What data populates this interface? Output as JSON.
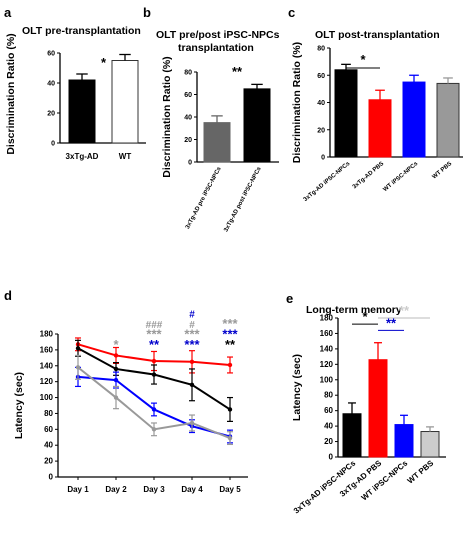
{
  "panels": {
    "a": {
      "label": "a",
      "title": "OLT pre-transplantation"
    },
    "b": {
      "label": "b",
      "title_line1": "OLT pre/post iPSC-NPCs",
      "title_line2": "transplantation"
    },
    "c": {
      "label": "c",
      "title": "OLT post-transplantation"
    },
    "d": {
      "label": "d"
    },
    "e": {
      "label": "e",
      "title": "Long-term memory"
    }
  },
  "chart_data": [
    {
      "id": "a",
      "type": "bar",
      "categories": [
        "3xTg-AD",
        "WT"
      ],
      "values": [
        42,
        55
      ],
      "errors": [
        4,
        4
      ],
      "ylabel": "Discrimination Ratio (%)",
      "ylim": [
        0,
        60
      ],
      "yticks": [
        0,
        20,
        40,
        60
      ],
      "colors": [
        "#000000",
        "#ffffff"
      ],
      "significance": [
        "*"
      ]
    },
    {
      "id": "b",
      "type": "bar",
      "categories": [
        "3xTg-AD pre iPSC-NPCs",
        "3xTg-AD post iPSC-NPCs"
      ],
      "values": [
        35,
        65
      ],
      "errors": [
        6,
        4
      ],
      "ylabel": "Discrimination Ratio (%)",
      "ylim": [
        0,
        80
      ],
      "yticks": [
        0,
        20,
        40,
        60,
        80
      ],
      "colors": [
        "#666666",
        "#000000"
      ],
      "significance": [
        "**"
      ]
    },
    {
      "id": "c",
      "type": "bar",
      "categories": [
        "3xTg-AD iPSC-NPCs",
        "3xTg-AD PBS",
        "WT iPSC-NPCs",
        "WT PBS"
      ],
      "values": [
        64,
        42,
        55,
        54
      ],
      "errors": [
        4,
        7,
        5,
        4
      ],
      "ylabel": "Discrimination Ratio (%)",
      "ylim": [
        0,
        80
      ],
      "yticks": [
        0,
        20,
        40,
        60,
        80
      ],
      "colors": [
        "#000000",
        "#ff0000",
        "#0000ff",
        "#999999"
      ],
      "significance": [
        "*"
      ]
    },
    {
      "id": "d",
      "type": "line",
      "x": [
        "Day 1",
        "Day 2",
        "Day 3",
        "Day 4",
        "Day 5"
      ],
      "ylabel": "Latency (sec)",
      "ylim": [
        0,
        180
      ],
      "yticks": [
        0,
        20,
        40,
        60,
        80,
        100,
        120,
        140,
        160,
        180
      ],
      "series": [
        {
          "color": "#ff0000",
          "values": [
            167,
            153,
            146,
            145,
            141
          ],
          "errors": [
            8,
            10,
            12,
            14,
            10
          ]
        },
        {
          "color": "#000000",
          "values": [
            162,
            136,
            129,
            116,
            85
          ],
          "errors": [
            10,
            8,
            12,
            20,
            15
          ]
        },
        {
          "color": "#0000ff",
          "values": [
            126,
            122,
            85,
            64,
            51
          ],
          "errors": [
            12,
            10,
            8,
            8,
            8
          ]
        },
        {
          "color": "#999999",
          "values": [
            138,
            100,
            60,
            68,
            49
          ],
          "errors": [
            15,
            14,
            8,
            10,
            8
          ]
        }
      ],
      "annotations": [
        {
          "day": "Day 2",
          "lines": [
            {
              "text": "*",
              "color": "#999999"
            }
          ]
        },
        {
          "day": "Day 3",
          "lines": [
            {
              "text": "###",
              "color": "#999999"
            },
            {
              "text": "***",
              "color": "#999999"
            },
            {
              "text": "**",
              "color": "#0000cc"
            }
          ]
        },
        {
          "day": "Day 4",
          "lines": [
            {
              "text": "#",
              "color": "#0000cc"
            },
            {
              "text": "#",
              "color": "#999999"
            },
            {
              "text": "***",
              "color": "#999999"
            },
            {
              "text": "***",
              "color": "#0000cc"
            }
          ]
        },
        {
          "day": "Day 5",
          "lines": [
            {
              "text": "***",
              "color": "#999999"
            },
            {
              "text": "***",
              "color": "#0000cc"
            },
            {
              "text": "**",
              "color": "#000000"
            }
          ]
        }
      ]
    },
    {
      "id": "e",
      "type": "bar",
      "categories": [
        "3xTg-AD iPSC-NPCs",
        "3xTg-AD PBS",
        "WT iPSC-NPCs",
        "WT PBS"
      ],
      "values": [
        56,
        126,
        42,
        33
      ],
      "errors": [
        14,
        22,
        12,
        6
      ],
      "ylabel": "Latency (sec)",
      "ylim": [
        0,
        180
      ],
      "yticks": [
        0,
        20,
        40,
        60,
        80,
        100,
        120,
        140,
        160,
        180
      ],
      "colors": [
        "#000000",
        "#ff0000",
        "#0000ff",
        "#cccccc"
      ],
      "significance": [
        {
          "text": "*",
          "color": "#000000"
        },
        {
          "text": "**",
          "color": "#0000cc"
        },
        {
          "text": "**",
          "color": "#cccccc"
        }
      ]
    }
  ]
}
